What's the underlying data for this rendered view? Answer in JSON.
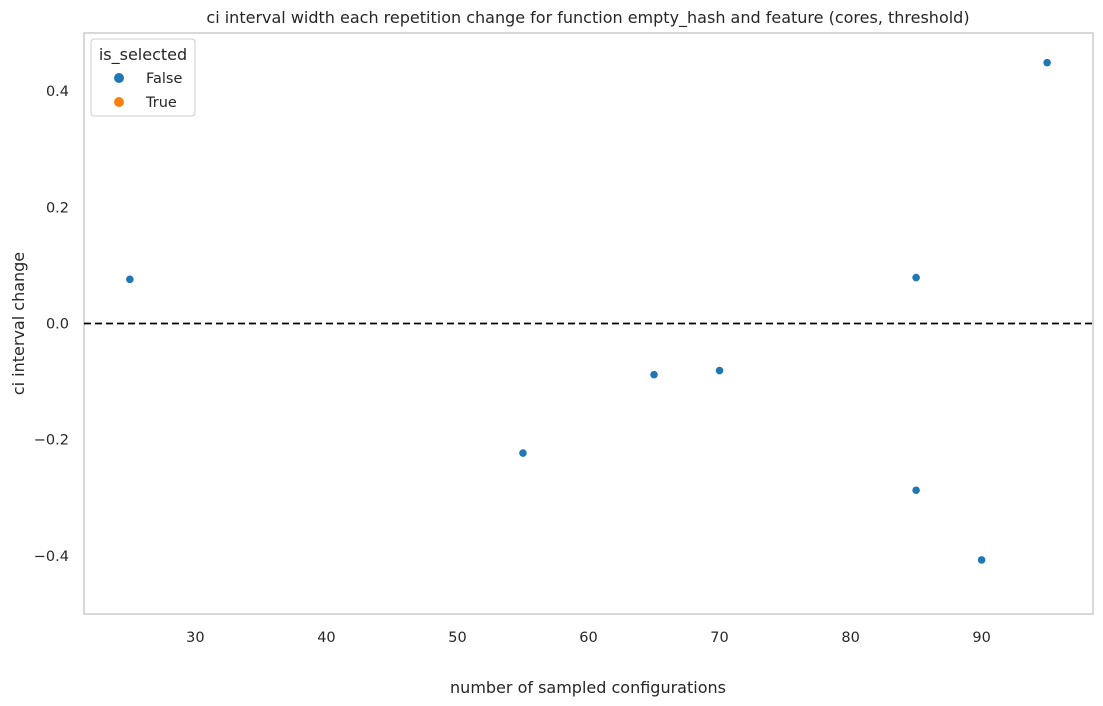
{
  "chart_data": {
    "type": "scatter",
    "title": "ci interval width each repetition change for function empty_hash and feature (cores, threshold)",
    "xlabel": "number of sampled configurations",
    "ylabel": "ci interval change",
    "xlim": [
      21.5,
      98.5
    ],
    "ylim": [
      -0.5,
      0.5
    ],
    "xticks": [
      30,
      40,
      50,
      60,
      70,
      80,
      90
    ],
    "yticks": [
      -0.4,
      -0.2,
      0.0,
      0.2,
      0.4
    ],
    "ytick_labels": [
      "−0.4",
      "−0.2",
      "0.0",
      "0.2",
      "0.4"
    ],
    "grid": false,
    "reference_line": {
      "y": 0.0,
      "style": "dashed",
      "color": "#000000"
    },
    "legend": {
      "title": "is_selected",
      "placement": "top-left",
      "entries": [
        {
          "label": "False",
          "color": "#1f77b4"
        },
        {
          "label": "True",
          "color": "#ff7f0e"
        }
      ]
    },
    "series": [
      {
        "name": "False",
        "color": "#1f77b4",
        "points": [
          {
            "x": 25,
            "y": 0.076
          },
          {
            "x": 55,
            "y": -0.223
          },
          {
            "x": 65,
            "y": -0.088
          },
          {
            "x": 70,
            "y": -0.081
          },
          {
            "x": 85,
            "y": 0.079
          },
          {
            "x": 85,
            "y": -0.287
          },
          {
            "x": 90,
            "y": -0.407
          },
          {
            "x": 95,
            "y": 0.449
          }
        ]
      },
      {
        "name": "True",
        "color": "#ff7f0e",
        "points": []
      }
    ]
  }
}
